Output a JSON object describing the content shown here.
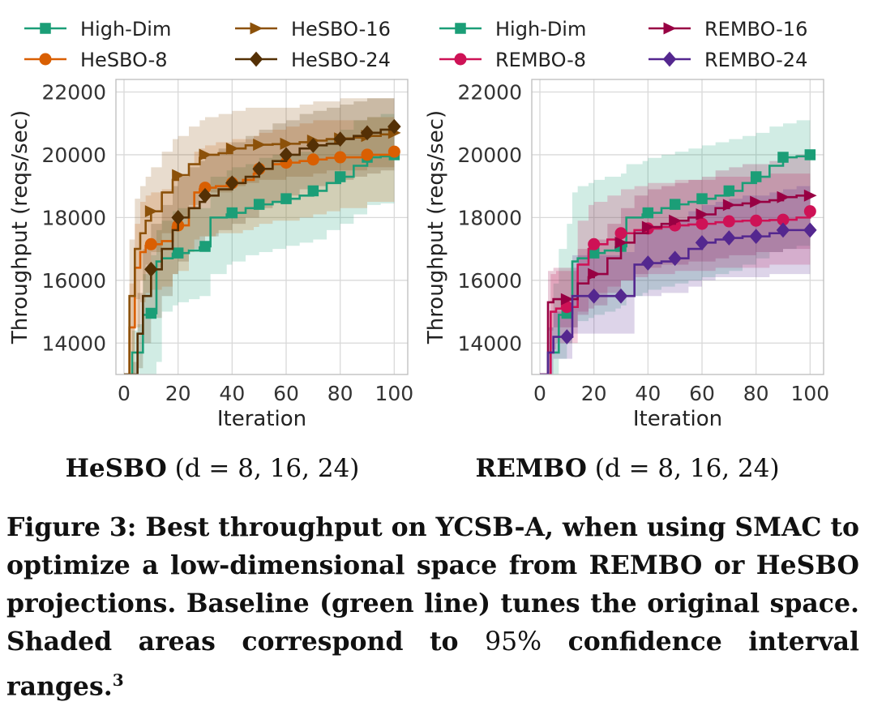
{
  "chart_data": [
    {
      "type": "line",
      "subtitle": "HeSBO",
      "subtitle_params": "(d = 8, 16, 24)",
      "xlabel": "Iteration",
      "ylabel": "Throughput (reqs/sec)",
      "xlim": [
        -3,
        105
      ],
      "ylim": [
        13000,
        22400
      ],
      "xticks": [
        0,
        20,
        40,
        60,
        80,
        100
      ],
      "yticks": [
        14000,
        16000,
        18000,
        20000,
        22000
      ],
      "grid": true,
      "legend_placement": "top",
      "series": [
        {
          "name": "High-Dim",
          "color": "#1b9e77",
          "marker": "square",
          "x": [
            0,
            3,
            5,
            7,
            10,
            12,
            14,
            18,
            20,
            24,
            28,
            30,
            32,
            38,
            40,
            45,
            50,
            55,
            60,
            65,
            70,
            75,
            80,
            85,
            90,
            95,
            100
          ],
          "y": [
            13000,
            13700,
            13700,
            14900,
            14950,
            16600,
            16700,
            16850,
            16870,
            16950,
            17050,
            17080,
            18000,
            18100,
            18150,
            18300,
            18420,
            18500,
            18600,
            18700,
            18850,
            19100,
            19300,
            19650,
            19920,
            19950,
            20000
          ],
          "lower": [
            13000,
            13000,
            13000,
            13000,
            13000,
            13400,
            15000,
            15200,
            15300,
            15400,
            15500,
            15500,
            16200,
            16500,
            16600,
            16800,
            16900,
            17000,
            17100,
            17200,
            17300,
            17600,
            17800,
            18100,
            18400,
            18450,
            18500
          ],
          "upper": [
            13000,
            14400,
            14600,
            16200,
            16800,
            17600,
            17900,
            18200,
            18300,
            18300,
            18300,
            18300,
            19300,
            19500,
            19600,
            19700,
            19900,
            20000,
            20000,
            20100,
            20300,
            20500,
            20800,
            21100,
            21200,
            21300,
            21350
          ]
        },
        {
          "name": "HeSBO-8",
          "color": "#d95f02",
          "marker": "circle",
          "x": [
            0,
            2,
            4,
            6,
            8,
            10,
            14,
            18,
            20,
            24,
            26,
            28,
            30,
            34,
            38,
            40,
            44,
            48,
            50,
            55,
            60,
            65,
            70,
            75,
            80,
            90,
            100
          ],
          "y": [
            13000,
            14500,
            16400,
            16900,
            17100,
            17150,
            17250,
            17700,
            17750,
            18300,
            18800,
            18900,
            18950,
            19000,
            19050,
            19100,
            19200,
            19400,
            19550,
            19700,
            19750,
            19800,
            19850,
            19900,
            19920,
            20000,
            20100
          ],
          "lower": [
            13000,
            13000,
            14500,
            15300,
            15600,
            15700,
            15800,
            16200,
            16300,
            16900,
            17300,
            17400,
            17400,
            17500,
            17500,
            17500,
            17600,
            17700,
            17800,
            17900,
            17900,
            18000,
            18100,
            18200,
            18300,
            18500,
            18500
          ],
          "upper": [
            13000,
            15900,
            17800,
            18500,
            18700,
            18800,
            18900,
            19200,
            19300,
            19700,
            20100,
            20200,
            20300,
            20400,
            20400,
            20500,
            20500,
            20600,
            20700,
            20800,
            20900,
            21000,
            21100,
            21100,
            21100,
            21200,
            21300
          ]
        },
        {
          "name": "HeSBO-16",
          "color": "#8c510a",
          "marker": "triangle-right",
          "x": [
            0,
            2,
            4,
            6,
            8,
            10,
            14,
            18,
            20,
            24,
            28,
            30,
            35,
            40,
            45,
            50,
            55,
            60,
            65,
            70,
            75,
            80,
            85,
            90,
            95,
            100
          ],
          "y": [
            13000,
            15500,
            17000,
            17500,
            17900,
            18200,
            18800,
            19200,
            19350,
            19700,
            19900,
            20000,
            20050,
            20200,
            20300,
            20320,
            20340,
            20350,
            20400,
            20450,
            20500,
            20520,
            20550,
            20600,
            20650,
            20700
          ],
          "lower": [
            13000,
            13700,
            15400,
            16000,
            16500,
            16900,
            17500,
            17900,
            18000,
            18400,
            18700,
            18800,
            18800,
            19000,
            19100,
            19200,
            19200,
            19300,
            19300,
            19400,
            19500,
            19500,
            19500,
            19600,
            19600,
            19600
          ],
          "upper": [
            13000,
            17300,
            18600,
            19000,
            19300,
            19600,
            20100,
            20500,
            20600,
            20900,
            21100,
            21200,
            21300,
            21400,
            21500,
            21500,
            21500,
            21500,
            21600,
            21700,
            21700,
            21800,
            21800,
            21800,
            21800,
            21900
          ]
        },
        {
          "name": "HeSBO-24",
          "color": "#543005",
          "marker": "diamond",
          "x": [
            0,
            3,
            5,
            7,
            10,
            14,
            18,
            20,
            24,
            28,
            30,
            35,
            40,
            45,
            50,
            55,
            60,
            65,
            70,
            75,
            80,
            85,
            90,
            95,
            100
          ],
          "y": [
            13000,
            13000,
            14300,
            15500,
            16350,
            17000,
            17600,
            18000,
            18300,
            18500,
            18700,
            18900,
            19100,
            19300,
            19550,
            19800,
            20000,
            20200,
            20300,
            20350,
            20500,
            20600,
            20700,
            20800,
            20900
          ],
          "lower": [
            13000,
            13000,
            13200,
            14000,
            14800,
            15500,
            16200,
            16600,
            17000,
            17200,
            17400,
            17600,
            17800,
            18000,
            18300,
            18500,
            18700,
            18900,
            19000,
            19100,
            19200,
            19300,
            19400,
            19500,
            19600
          ],
          "upper": [
            13000,
            13400,
            15600,
            17000,
            17800,
            18400,
            19000,
            19300,
            19600,
            19800,
            20000,
            20200,
            20400,
            20600,
            20800,
            21000,
            21100,
            21300,
            21400,
            21500,
            21600,
            21700,
            21800,
            21800,
            21900
          ]
        }
      ]
    },
    {
      "type": "line",
      "subtitle": "REMBO",
      "subtitle_params": "(d = 8, 16, 24)",
      "xlabel": "Iteration",
      "ylabel": "Throughput (reqs/sec)",
      "xlim": [
        -3,
        105
      ],
      "ylim": [
        13000,
        22400
      ],
      "xticks": [
        0,
        20,
        40,
        60,
        80,
        100
      ],
      "yticks": [
        14000,
        16000,
        18000,
        20000,
        22000
      ],
      "grid": true,
      "legend_placement": "top",
      "series": [
        {
          "name": "High-Dim",
          "color": "#1b9e77",
          "marker": "square",
          "x": [
            0,
            3,
            5,
            7,
            10,
            12,
            14,
            18,
            20,
            24,
            28,
            30,
            32,
            38,
            40,
            45,
            50,
            55,
            60,
            65,
            70,
            75,
            80,
            85,
            90,
            95,
            100
          ],
          "y": [
            13000,
            13700,
            13700,
            14900,
            14950,
            16600,
            16700,
            16850,
            16870,
            16950,
            17050,
            17080,
            18000,
            18100,
            18150,
            18300,
            18420,
            18500,
            18600,
            18700,
            18850,
            19100,
            19300,
            19650,
            19920,
            19950,
            20000
          ],
          "lower": [
            13000,
            13000,
            13000,
            13500,
            14000,
            14500,
            14700,
            14800,
            14900,
            15000,
            15100,
            15200,
            15500,
            15600,
            15700,
            15800,
            15900,
            16000,
            16100,
            16200,
            16300,
            16500,
            16700,
            16900,
            17000,
            17100,
            17200
          ],
          "upper": [
            13000,
            14500,
            15900,
            17000,
            17800,
            18800,
            19000,
            19100,
            19200,
            19300,
            19300,
            19400,
            19700,
            19800,
            19900,
            20000,
            20100,
            20200,
            20300,
            20400,
            20500,
            20600,
            20700,
            20900,
            21000,
            21100,
            21100
          ]
        },
        {
          "name": "REMBO-8",
          "color": "#ce1256",
          "marker": "circle",
          "x": [
            0,
            4,
            6,
            8,
            10,
            14,
            18,
            20,
            25,
            30,
            35,
            40,
            45,
            50,
            55,
            60,
            65,
            70,
            75,
            80,
            85,
            90,
            95,
            100
          ],
          "y": [
            13000,
            15000,
            15100,
            15100,
            15150,
            16500,
            17000,
            17150,
            17300,
            17500,
            17600,
            17650,
            17700,
            17750,
            17780,
            17800,
            17850,
            17880,
            17900,
            17900,
            17920,
            17930,
            18000,
            18200
          ],
          "lower": [
            13000,
            13800,
            14000,
            14000,
            14000,
            15000,
            15500,
            15600,
            15800,
            16000,
            16100,
            16200,
            16200,
            16300,
            16300,
            16300,
            16400,
            16400,
            16400,
            16400,
            16500,
            16500,
            16500,
            16500
          ],
          "upper": [
            13000,
            16200,
            16300,
            16300,
            16300,
            17900,
            18400,
            18500,
            18700,
            18900,
            19000,
            19100,
            19100,
            19200,
            19200,
            19200,
            19300,
            19300,
            19300,
            19300,
            19400,
            19400,
            19400,
            19500
          ]
        },
        {
          "name": "REMBO-16",
          "color": "#980043",
          "marker": "triangle-right",
          "x": [
            0,
            3,
            5,
            8,
            10,
            14,
            18,
            20,
            25,
            30,
            35,
            40,
            45,
            50,
            55,
            60,
            65,
            70,
            75,
            80,
            85,
            90,
            95,
            100
          ],
          "y": [
            13000,
            15300,
            15400,
            15400,
            15400,
            15900,
            16100,
            16200,
            16700,
            17200,
            17500,
            17700,
            17800,
            17900,
            18000,
            18100,
            18300,
            18400,
            18450,
            18500,
            18550,
            18650,
            18700,
            18700
          ],
          "lower": [
            13000,
            14400,
            14500,
            14500,
            14500,
            14900,
            15100,
            15200,
            15600,
            16000,
            16200,
            16400,
            16500,
            16500,
            16600,
            16600,
            16700,
            16800,
            16800,
            16900,
            16900,
            17000,
            17000,
            17000
          ],
          "upper": [
            13000,
            16300,
            16400,
            16400,
            16400,
            17000,
            17200,
            17300,
            17800,
            18300,
            18700,
            18900,
            19000,
            19100,
            19200,
            19300,
            19500,
            19600,
            19700,
            19700,
            19800,
            19900,
            20000,
            20000
          ]
        },
        {
          "name": "REMBO-24",
          "color": "#54278f",
          "marker": "diamond",
          "x": [
            0,
            3,
            5,
            8,
            10,
            12,
            14,
            18,
            20,
            25,
            30,
            35,
            40,
            45,
            50,
            55,
            60,
            65,
            70,
            75,
            80,
            85,
            90,
            95,
            100
          ],
          "y": [
            13000,
            13700,
            14200,
            14200,
            14200,
            15500,
            15500,
            15500,
            15500,
            15500,
            15500,
            16500,
            16550,
            16600,
            16700,
            17000,
            17200,
            17300,
            17350,
            17400,
            17400,
            17500,
            17600,
            17600,
            17600
          ],
          "lower": [
            13000,
            13000,
            13500,
            13500,
            13500,
            14300,
            14300,
            14300,
            14300,
            14300,
            14300,
            15500,
            15500,
            15600,
            15600,
            15800,
            16000,
            16100,
            16100,
            16100,
            16100,
            16200,
            16200,
            16200,
            16200
          ],
          "upper": [
            13000,
            14500,
            15000,
            15000,
            15000,
            16800,
            16800,
            16800,
            16800,
            16800,
            16900,
            17600,
            17700,
            17800,
            17900,
            18200,
            18400,
            18500,
            18600,
            18700,
            18700,
            18800,
            18900,
            19000,
            19100
          ]
        }
      ]
    }
  ],
  "caption": {
    "figure_number": "Figure 3:",
    "text_before_percent": "Best throughput on YCSB-A, when using SMAC to optimize a low-dimensional space from REMBO or HeSBO projections. Baseline (green line) tunes the original space. Shaded areas correspond to",
    "percent_value": "95%",
    "text_after_percent": "confidence interval ranges.",
    "footnote_mark": "3"
  }
}
